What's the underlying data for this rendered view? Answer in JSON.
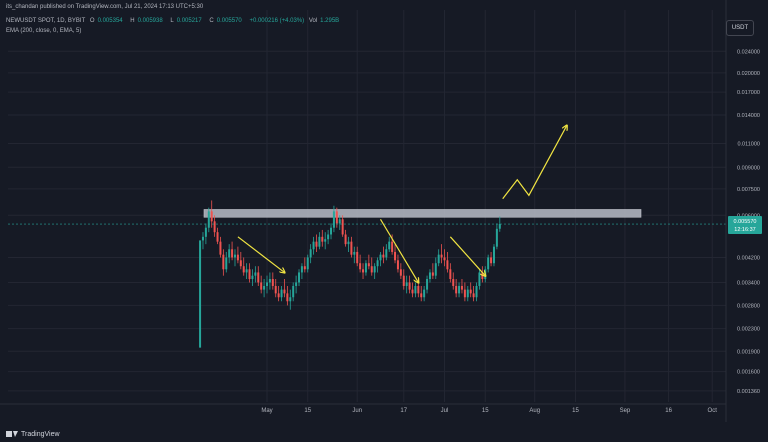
{
  "header": {
    "publish_line": "its_chandan published on TradingView.com, Jul 21, 2024 17:13 UTC+5:30",
    "symbol": "NEWUSDT SPOT, 1D, BYBIT",
    "ohlc": [
      {
        "label": "O",
        "value": "0.005354"
      },
      {
        "label": "H",
        "value": "0.005938"
      },
      {
        "label": "L",
        "value": "0.005217"
      },
      {
        "label": "C",
        "value": "0.005570"
      }
    ],
    "change": "+0.000216 (+4.03%)",
    "volume_label": "Vol",
    "volume": "1.295B",
    "indicator": "EMA (200, close, 0, EMA, 5)"
  },
  "currency_button": "USDT",
  "footer": {
    "brand": "TradingView"
  },
  "price_badge": {
    "price": "0.005570",
    "countdown": "12:16:37"
  },
  "colors": {
    "background": "#161a25",
    "up": "#26a69a",
    "down": "#ef5350",
    "resistance_zone": "#b8bcc6",
    "arrow": "#f0e442",
    "grid": "#232632"
  },
  "chart_data": {
    "type": "candlestick",
    "scale": "log",
    "y_ticks": [
      "0.024000",
      "0.020000",
      "0.017000",
      "0.014000",
      "0.011000",
      "0.009000",
      "0.007500",
      "0.006000",
      "0.004200",
      "0.003400",
      "0.002800",
      "0.002300",
      "0.001900",
      "0.001600",
      "0.001360"
    ],
    "x_ticks": [
      "May",
      "15",
      "Jun",
      "17",
      "Jul",
      "15",
      "Aug",
      "15",
      "Sep",
      "16",
      "Oct"
    ],
    "resistance_zone": [
      0.0059,
      0.0063
    ],
    "annotations": [
      {
        "type": "arrow",
        "from": [
          "2024-04-21",
          0.005
        ],
        "to": [
          "2024-05-07",
          0.0037
        ]
      },
      {
        "type": "arrow",
        "from": [
          "2024-06-09",
          0.0058
        ],
        "to": [
          "2024-06-22",
          0.0034
        ]
      },
      {
        "type": "arrow",
        "from": [
          "2024-07-03",
          0.005
        ],
        "to": [
          "2024-07-15",
          0.0036
        ]
      },
      {
        "type": "path",
        "points": [
          [
            "2024-07-21",
            0.0069
          ],
          [
            "2024-07-26",
            0.0081
          ],
          [
            "2024-07-30",
            0.0071
          ],
          [
            "2024-08-12",
            0.0128
          ]
        ]
      }
    ],
    "candles": [
      [
        "2024-04-08",
        0.00196,
        0.00485,
        0.00196,
        0.00485
      ],
      [
        "2024-04-09",
        0.00485,
        0.0052,
        0.0045,
        0.005
      ],
      [
        "2024-04-10",
        0.005,
        0.0056,
        0.0047,
        0.0054
      ],
      [
        "2024-04-11",
        0.0054,
        0.0064,
        0.0052,
        0.0062
      ],
      [
        "2024-04-12",
        0.0062,
        0.0068,
        0.0054,
        0.0057
      ],
      [
        "2024-04-13",
        0.0057,
        0.006,
        0.005,
        0.0052
      ],
      [
        "2024-04-14",
        0.0052,
        0.0054,
        0.0047,
        0.0048
      ],
      [
        "2024-04-15",
        0.0048,
        0.005,
        0.0042,
        0.0043
      ],
      [
        "2024-04-16",
        0.0043,
        0.0045,
        0.0036,
        0.0038
      ],
      [
        "2024-04-17",
        0.0038,
        0.0044,
        0.0037,
        0.0042
      ],
      [
        "2024-04-18",
        0.0042,
        0.0047,
        0.004,
        0.0045
      ],
      [
        "2024-04-19",
        0.0045,
        0.0048,
        0.0041,
        0.0042
      ],
      [
        "2024-04-20",
        0.0042,
        0.0045,
        0.0039,
        0.0043
      ],
      [
        "2024-04-21",
        0.0043,
        0.0046,
        0.004,
        0.0041
      ],
      [
        "2024-04-22",
        0.0041,
        0.0044,
        0.0038,
        0.0039
      ],
      [
        "2024-04-23",
        0.0039,
        0.0042,
        0.0036,
        0.0037
      ],
      [
        "2024-04-24",
        0.0037,
        0.004,
        0.0035,
        0.0038
      ],
      [
        "2024-04-25",
        0.0038,
        0.004,
        0.0034,
        0.0035
      ],
      [
        "2024-04-26",
        0.0035,
        0.0038,
        0.0033,
        0.0036
      ],
      [
        "2024-04-27",
        0.0036,
        0.0039,
        0.0034,
        0.0037
      ],
      [
        "2024-04-28",
        0.0037,
        0.0039,
        0.0033,
        0.0034
      ],
      [
        "2024-04-29",
        0.0034,
        0.0036,
        0.0031,
        0.0032
      ],
      [
        "2024-04-30",
        0.0032,
        0.0035,
        0.003,
        0.0033
      ],
      [
        "2024-05-01",
        0.0033,
        0.0036,
        0.0031,
        0.0034
      ],
      [
        "2024-05-02",
        0.0034,
        0.0037,
        0.0032,
        0.0035
      ],
      [
        "2024-05-03",
        0.0035,
        0.0037,
        0.0032,
        0.0033
      ],
      [
        "2024-05-04",
        0.0033,
        0.0035,
        0.003,
        0.0031
      ],
      [
        "2024-05-05",
        0.0031,
        0.0033,
        0.0029,
        0.003
      ],
      [
        "2024-05-06",
        0.003,
        0.0033,
        0.0029,
        0.0032
      ],
      [
        "2024-05-07",
        0.0032,
        0.0035,
        0.003,
        0.0031
      ],
      [
        "2024-05-08",
        0.0031,
        0.0033,
        0.0028,
        0.0029
      ],
      [
        "2024-05-09",
        0.0029,
        0.0032,
        0.0027,
        0.003
      ],
      [
        "2024-05-10",
        0.003,
        0.0034,
        0.0029,
        0.0033
      ],
      [
        "2024-05-11",
        0.0033,
        0.0036,
        0.0031,
        0.0034
      ],
      [
        "2024-05-12",
        0.0034,
        0.0038,
        0.0033,
        0.0037
      ],
      [
        "2024-05-13",
        0.0037,
        0.004,
        0.0035,
        0.0039
      ],
      [
        "2024-05-14",
        0.0039,
        0.0042,
        0.0037,
        0.0038
      ],
      [
        "2024-05-15",
        0.0038,
        0.0043,
        0.0037,
        0.0042
      ],
      [
        "2024-05-16",
        0.0042,
        0.0047,
        0.004,
        0.0045
      ],
      [
        "2024-05-17",
        0.0045,
        0.005,
        0.0043,
        0.0048
      ],
      [
        "2024-05-18",
        0.0048,
        0.0051,
        0.0044,
        0.0046
      ],
      [
        "2024-05-19",
        0.0046,
        0.0052,
        0.0045,
        0.005
      ],
      [
        "2024-05-20",
        0.005,
        0.0053,
        0.0046,
        0.0048
      ],
      [
        "2024-05-21",
        0.0048,
        0.0052,
        0.0045,
        0.0049
      ],
      [
        "2024-05-22",
        0.0049,
        0.0053,
        0.0047,
        0.0051
      ],
      [
        "2024-05-23",
        0.0051,
        0.0056,
        0.0049,
        0.0054
      ],
      [
        "2024-05-24",
        0.0054,
        0.0065,
        0.0052,
        0.0062
      ],
      [
        "2024-05-25",
        0.0062,
        0.0064,
        0.0054,
        0.0056
      ],
      [
        "2024-05-26",
        0.0056,
        0.006,
        0.0053,
        0.0058
      ],
      [
        "2024-05-27",
        0.0058,
        0.006,
        0.005,
        0.0051
      ],
      [
        "2024-05-28",
        0.0051,
        0.0053,
        0.0046,
        0.0047
      ],
      [
        "2024-05-29",
        0.0047,
        0.005,
        0.0044,
        0.0048
      ],
      [
        "2024-05-30",
        0.0048,
        0.005,
        0.0042,
        0.0043
      ],
      [
        "2024-05-31",
        0.0043,
        0.0046,
        0.004,
        0.0044
      ],
      [
        "2024-06-01",
        0.0044,
        0.0046,
        0.0039,
        0.004
      ],
      [
        "2024-06-02",
        0.004,
        0.0043,
        0.0037,
        0.0038
      ],
      [
        "2024-06-03",
        0.0038,
        0.004,
        0.0035,
        0.0037
      ],
      [
        "2024-06-04",
        0.0037,
        0.0041,
        0.0036,
        0.004
      ],
      [
        "2024-06-05",
        0.004,
        0.0043,
        0.0038,
        0.0039
      ],
      [
        "2024-06-06",
        0.0039,
        0.0042,
        0.0036,
        0.0037
      ],
      [
        "2024-06-07",
        0.0037,
        0.004,
        0.0035,
        0.0039
      ],
      [
        "2024-06-08",
        0.0039,
        0.0042,
        0.0037,
        0.0041
      ],
      [
        "2024-06-09",
        0.0041,
        0.0044,
        0.0039,
        0.0043
      ],
      [
        "2024-06-10",
        0.0043,
        0.0046,
        0.004,
        0.0042
      ],
      [
        "2024-06-11",
        0.0042,
        0.0047,
        0.0041,
        0.0045
      ],
      [
        "2024-06-12",
        0.0045,
        0.005,
        0.0044,
        0.0048
      ],
      [
        "2024-06-13",
        0.0048,
        0.0051,
        0.0043,
        0.0044
      ],
      [
        "2024-06-14",
        0.0044,
        0.0047,
        0.004,
        0.0041
      ],
      [
        "2024-06-15",
        0.0041,
        0.0043,
        0.0037,
        0.0038
      ],
      [
        "2024-06-16",
        0.0038,
        0.004,
        0.0035,
        0.0036
      ],
      [
        "2024-06-17",
        0.0036,
        0.0038,
        0.0032,
        0.0033
      ],
      [
        "2024-06-18",
        0.0033,
        0.0036,
        0.0031,
        0.0034
      ],
      [
        "2024-06-19",
        0.0034,
        0.0036,
        0.0031,
        0.0032
      ],
      [
        "2024-06-20",
        0.0032,
        0.0034,
        0.003,
        0.0031
      ],
      [
        "2024-06-21",
        0.0031,
        0.0034,
        0.003,
        0.0033
      ],
      [
        "2024-06-22",
        0.0033,
        0.0035,
        0.003,
        0.0031
      ],
      [
        "2024-06-23",
        0.0031,
        0.0033,
        0.0029,
        0.003
      ],
      [
        "2024-06-24",
        0.003,
        0.0033,
        0.0029,
        0.0032
      ],
      [
        "2024-06-25",
        0.0032,
        0.0036,
        0.0031,
        0.0035
      ],
      [
        "2024-06-26",
        0.0035,
        0.0038,
        0.0034,
        0.0037
      ],
      [
        "2024-06-27",
        0.0037,
        0.004,
        0.0035,
        0.0036
      ],
      [
        "2024-06-28",
        0.0036,
        0.0042,
        0.0035,
        0.004
      ],
      [
        "2024-06-29",
        0.004,
        0.0045,
        0.0039,
        0.0043
      ],
      [
        "2024-06-30",
        0.0043,
        0.0047,
        0.004,
        0.0042
      ],
      [
        "2024-07-01",
        0.0042,
        0.0045,
        0.0039,
        0.0041
      ],
      [
        "2024-07-02",
        0.0041,
        0.0044,
        0.0037,
        0.0038
      ],
      [
        "2024-07-03",
        0.0038,
        0.004,
        0.0034,
        0.0035
      ],
      [
        "2024-07-04",
        0.0035,
        0.0037,
        0.0032,
        0.0033
      ],
      [
        "2024-07-05",
        0.0033,
        0.0035,
        0.003,
        0.0031
      ],
      [
        "2024-07-06",
        0.0031,
        0.0034,
        0.003,
        0.0033
      ],
      [
        "2024-07-07",
        0.0033,
        0.0035,
        0.0031,
        0.0032
      ],
      [
        "2024-07-08",
        0.0032,
        0.0034,
        0.0029,
        0.003
      ],
      [
        "2024-07-09",
        0.003,
        0.0033,
        0.0029,
        0.0032
      ],
      [
        "2024-07-10",
        0.0032,
        0.0034,
        0.003,
        0.0031
      ],
      [
        "2024-07-11",
        0.0031,
        0.0033,
        0.0029,
        0.003
      ],
      [
        "2024-07-12",
        0.003,
        0.0034,
        0.0029,
        0.0033
      ],
      [
        "2024-07-13",
        0.0033,
        0.0038,
        0.0032,
        0.0037
      ],
      [
        "2024-07-14",
        0.0037,
        0.0039,
        0.0034,
        0.0035
      ],
      [
        "2024-07-15",
        0.0035,
        0.0039,
        0.0034,
        0.0038
      ],
      [
        "2024-07-16",
        0.0038,
        0.0043,
        0.0037,
        0.0042
      ],
      [
        "2024-07-17",
        0.0042,
        0.0044,
        0.0039,
        0.004
      ],
      [
        "2024-07-18",
        0.004,
        0.0047,
        0.0039,
        0.0046
      ],
      [
        "2024-07-19",
        0.0046,
        0.0056,
        0.0045,
        0.00535
      ],
      [
        "2024-07-20",
        0.005354,
        0.005938,
        0.005217,
        0.00557
      ]
    ]
  }
}
